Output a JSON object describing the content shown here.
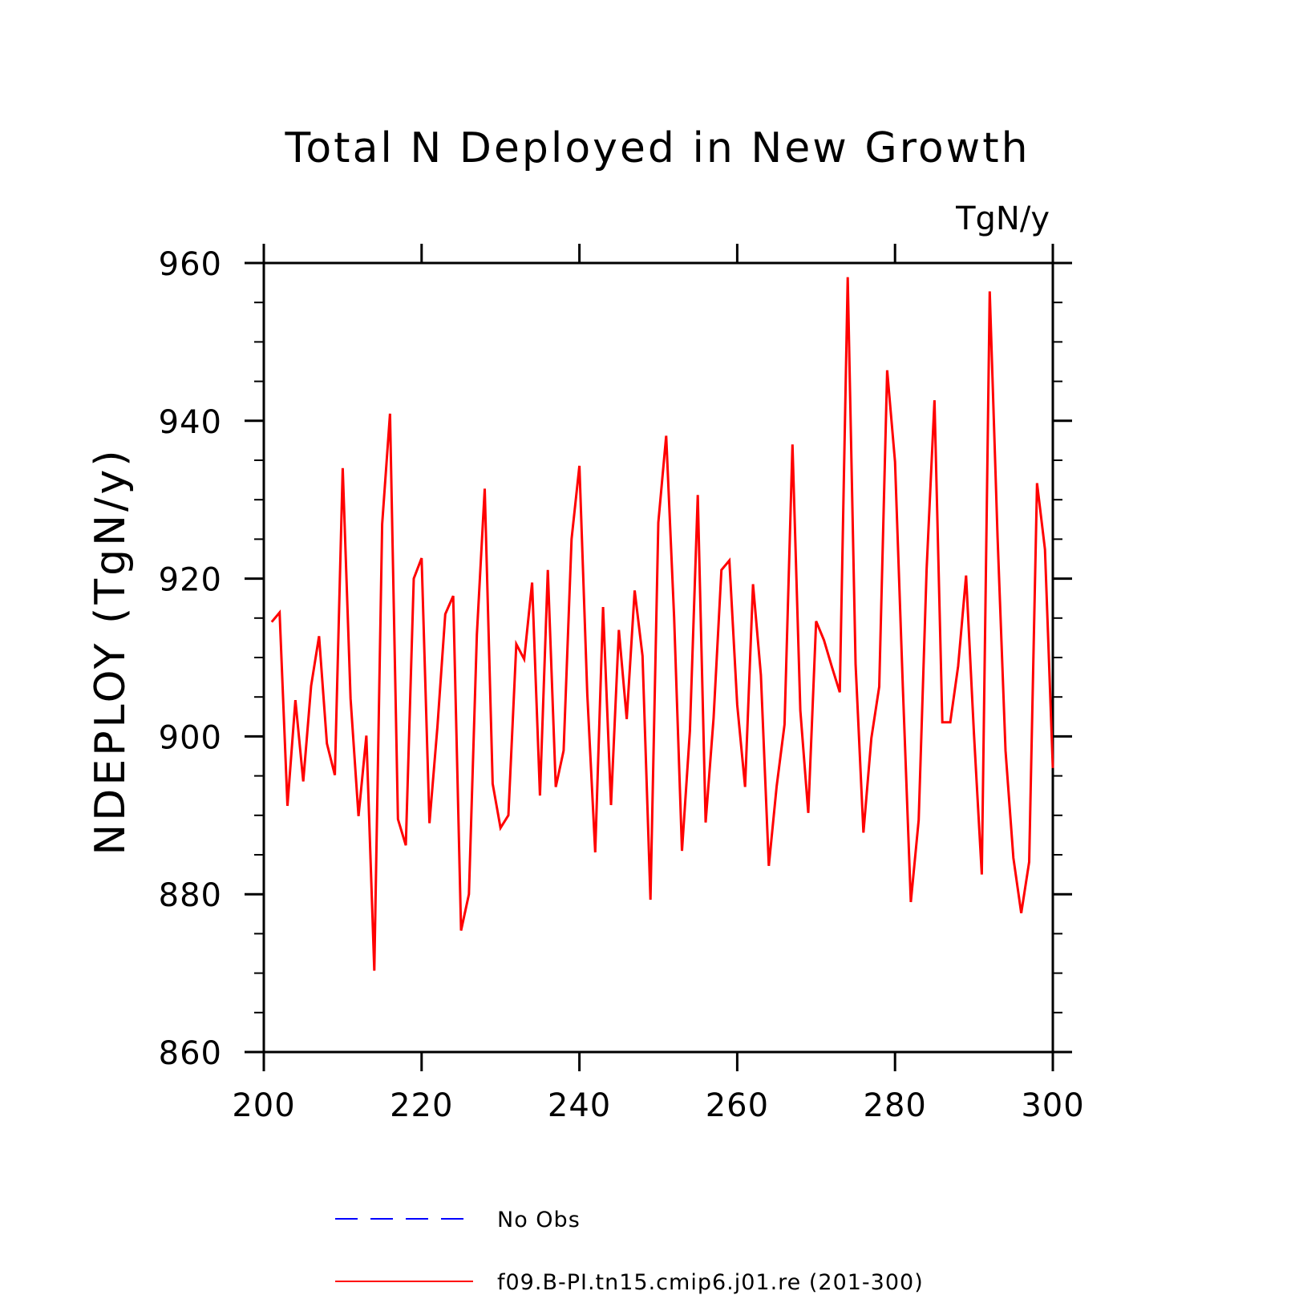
{
  "chart_data": {
    "type": "line",
    "title": "Total N Deployed in New Growth",
    "units": "TgN/y",
    "ylabel": "NDEPLOY  (TgN/y)",
    "xlabel": "",
    "xlim": [
      200,
      300
    ],
    "ylim": [
      860,
      960
    ],
    "xticks": [
      "200",
      "220",
      "240",
      "260",
      "280",
      "300"
    ],
    "yticks": [
      "860",
      "880",
      "900",
      "920",
      "940",
      "960"
    ],
    "grid": false,
    "legend_position": "bottom",
    "series": [
      {
        "name": "No Obs",
        "color": "#0000ff",
        "dash": "dashed",
        "x": [],
        "values": []
      },
      {
        "name": "f09.B-PI.tn15.cmip6.j01.re (201-300)",
        "color": "#ff0000",
        "dash": "solid",
        "x": [
          201,
          202,
          203,
          204,
          205,
          206,
          207,
          208,
          209,
          210,
          211,
          212,
          213,
          214,
          215,
          216,
          217,
          218,
          219,
          220,
          221,
          222,
          223,
          224,
          225,
          226,
          227,
          228,
          229,
          230,
          231,
          232,
          233,
          234,
          235,
          236,
          237,
          238,
          239,
          240,
          241,
          242,
          243,
          244,
          245,
          246,
          247,
          248,
          249,
          250,
          251,
          252,
          253,
          254,
          255,
          256,
          257,
          258,
          259,
          260,
          261,
          262,
          263,
          264,
          265,
          266,
          267,
          268,
          269,
          270,
          271,
          272,
          273,
          274,
          275,
          276,
          277,
          278,
          279,
          280,
          281,
          282,
          283,
          284,
          285,
          286,
          287,
          288,
          289,
          290,
          291,
          292,
          293,
          294,
          295,
          296,
          297,
          298,
          299,
          300
        ],
        "values": [
          914.5,
          915.7,
          891.2,
          904.6,
          894.3,
          906.4,
          912.7,
          899.1,
          895.1,
          934.0,
          904.8,
          889.9,
          900.1,
          870.3,
          926.9,
          940.9,
          889.5,
          886.2,
          920.0,
          922.6,
          889.0,
          901.2,
          915.5,
          917.8,
          875.4,
          880.0,
          912.9,
          931.4,
          894.0,
          888.4,
          890.0,
          911.7,
          909.8,
          919.5,
          892.5,
          921.1,
          893.6,
          898.2,
          925.0,
          934.3,
          905.4,
          885.3,
          916.4,
          891.3,
          913.5,
          902.2,
          918.5,
          910.2,
          879.3,
          927.1,
          938.1,
          915.1,
          885.5,
          900.7,
          930.6,
          889.1,
          902.3,
          921.1,
          922.3,
          904.0,
          893.6,
          919.3,
          907.8,
          883.6,
          893.7,
          901.5,
          937.0,
          903.3,
          890.3,
          914.6,
          912.2,
          908.8,
          905.6,
          958.2,
          909.2,
          887.8,
          899.8,
          906.3,
          946.4,
          934.8,
          906.1,
          879.0,
          889.4,
          921.2,
          942.6,
          901.8,
          901.8,
          908.9,
          920.4,
          900.4,
          882.5,
          956.4,
          925.2,
          898.2,
          884.6,
          877.6,
          884.1,
          932.1,
          923.7,
          896.0
        ]
      }
    ]
  }
}
